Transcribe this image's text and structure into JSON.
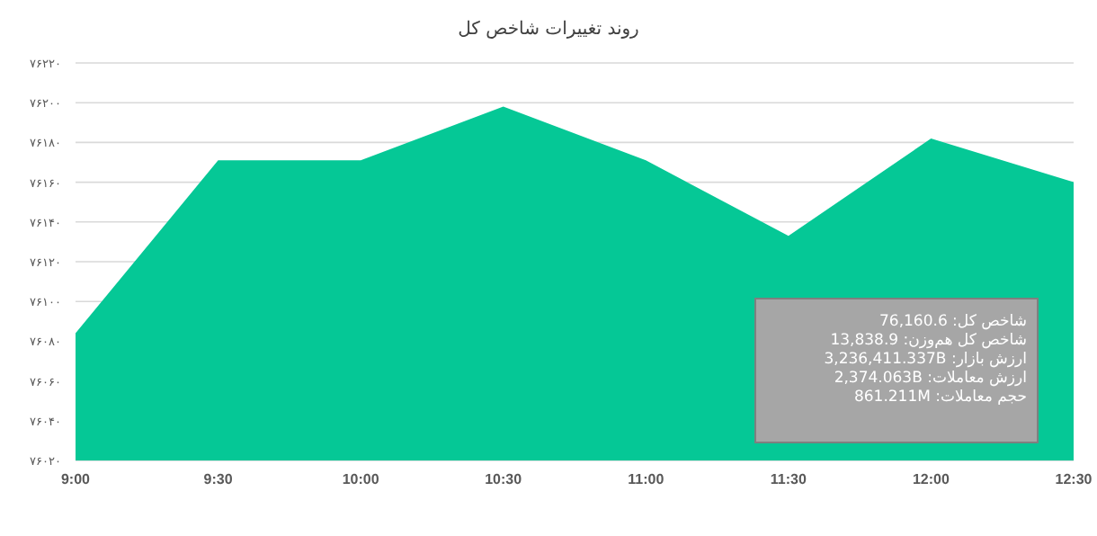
{
  "chart_data": {
    "type": "area",
    "title": "روند تغییرات شاخص کل",
    "categories": [
      "9:00",
      "9:30",
      "10:00",
      "10:30",
      "11:00",
      "11:30",
      "12:00",
      "12:30"
    ],
    "values": [
      76084,
      76171,
      76171,
      76198,
      76171,
      76133,
      76182,
      76160
    ],
    "color": "#05c896",
    "ylim": [
      76020,
      76220
    ],
    "yticks": [
      {
        "value": 76020,
        "label": "۷۶۰۲۰"
      },
      {
        "value": 76040,
        "label": "۷۶۰۴۰"
      },
      {
        "value": 76060,
        "label": "۷۶۰۶۰"
      },
      {
        "value": 76080,
        "label": "۷۶۰۸۰"
      },
      {
        "value": 76100,
        "label": "۷۶۱۰۰"
      },
      {
        "value": 76120,
        "label": "۷۶۱۲۰"
      },
      {
        "value": 76140,
        "label": "۷۶۱۴۰"
      },
      {
        "value": 76160,
        "label": "۷۶۱۶۰"
      },
      {
        "value": 76180,
        "label": "۷۶۱۸۰"
      },
      {
        "value": 76200,
        "label": "۷۶۲۰۰"
      },
      {
        "value": 76220,
        "label": "۷۶۲۲۰"
      }
    ],
    "grid": "y",
    "annotations": [
      "شاخص کل: 76,160.6",
      "شاخص کل هم‌وزن: 13,838.9",
      "ارزش بازار: 3,236,411.337B",
      "ارزش معاملات: 2,374.063B",
      "حجم معاملات: 861.211M"
    ]
  }
}
